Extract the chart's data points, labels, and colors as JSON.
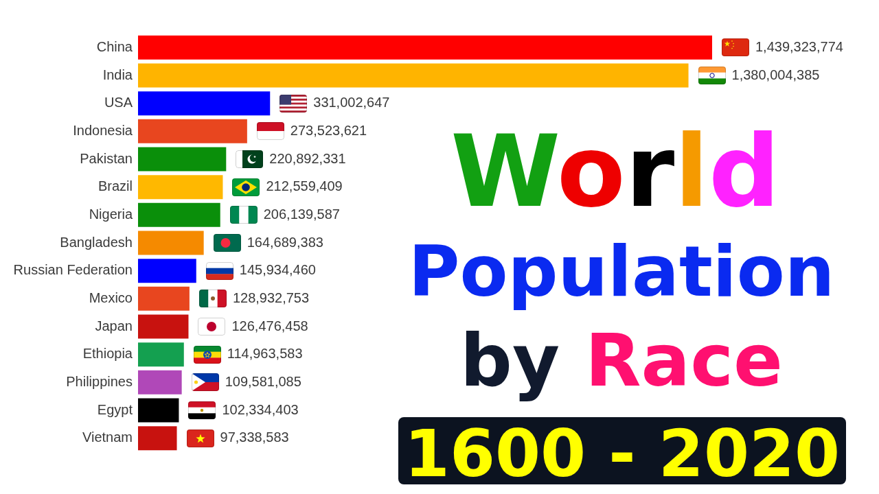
{
  "chart_data": {
    "type": "bar",
    "orientation": "horizontal",
    "title": "World Population by Race",
    "subtitle": "1600 - 2020",
    "categories": [
      "China",
      "India",
      "USA",
      "Indonesia",
      "Pakistan",
      "Brazil",
      "Nigeria",
      "Bangladesh",
      "Russian Federation",
      "Mexico",
      "Japan",
      "Ethiopia",
      "Philippines",
      "Egypt",
      "Vietnam"
    ],
    "values": [
      1439323774,
      1380004385,
      331002647,
      273523621,
      220892331,
      212559409,
      206139587,
      164689383,
      145934460,
      128932753,
      126476458,
      114963583,
      109581085,
      102334403,
      97338583
    ],
    "colors": [
      "#ff0000",
      "#ffb400",
      "#0000ff",
      "#e8461f",
      "#0a8f0a",
      "#ffb800",
      "#0a8f0a",
      "#f58a00",
      "#0000ff",
      "#e8461f",
      "#c8120f",
      "#14a050",
      "#b048b8",
      "#000000",
      "#c8120f"
    ],
    "value_labels": [
      "1,439,323,774",
      "1,380,004,385",
      "331,002,647",
      "273,523,621",
      "220,892,331",
      "212,559,409",
      "206,139,587",
      "164,689,383",
      "145,934,460",
      "128,932,753",
      "126,476,458",
      "114,963,583",
      "109,581,085",
      "102,334,403",
      "97,338,583"
    ]
  }
}
